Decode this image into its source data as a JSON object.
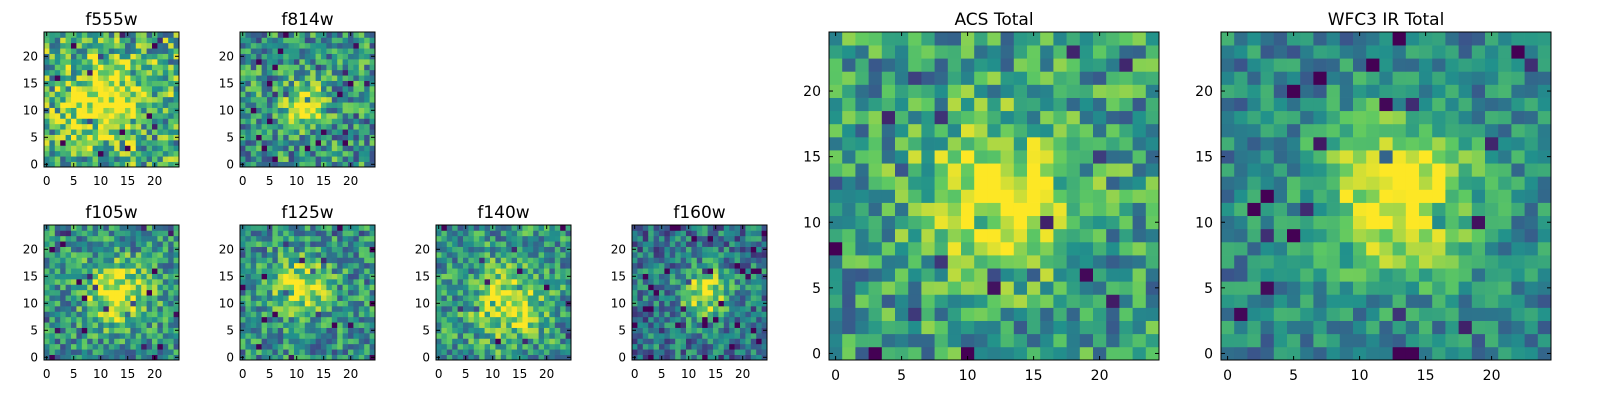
{
  "colors": {
    "colormap": "viridis",
    "colormap_stops": [
      "#440154",
      "#3b528b",
      "#21918c",
      "#5ec962",
      "#fde725"
    ],
    "frame": "#000000",
    "background": "#ffffff"
  },
  "chart_data": [
    {
      "type": "heatmap",
      "title": "f555w",
      "grid_size": 25,
      "xlim": [
        -0.5,
        24.5
      ],
      "ylim": [
        -0.5,
        24.5
      ],
      "xticks": [
        "0",
        "5",
        "10",
        "15",
        "20"
      ],
      "yticks": [
        "0",
        "5",
        "10",
        "15",
        "20"
      ],
      "source_center": [
        11,
        12
      ],
      "source_peak": 0.45,
      "source_sigma": 4.5,
      "noise": 0.35,
      "background": 0.62,
      "seed": 11
    },
    {
      "type": "heatmap",
      "title": "f814w",
      "grid_size": 25,
      "xlim": [
        -0.5,
        24.5
      ],
      "ylim": [
        -0.5,
        24.5
      ],
      "xticks": [
        "0",
        "5",
        "10",
        "15",
        "20"
      ],
      "yticks": [
        "0",
        "5",
        "10",
        "15",
        "20"
      ],
      "source_center": [
        11,
        11
      ],
      "source_peak": 0.5,
      "source_sigma": 2.8,
      "noise": 0.32,
      "background": 0.52,
      "seed": 23
    },
    {
      "type": "heatmap",
      "title": "f105w",
      "grid_size": 25,
      "xlim": [
        -0.5,
        24.5
      ],
      "ylim": [
        -0.5,
        24.5
      ],
      "xticks": [
        "0",
        "5",
        "10",
        "15",
        "20"
      ],
      "yticks": [
        "0",
        "5",
        "10",
        "15",
        "20"
      ],
      "source_center": [
        13,
        12
      ],
      "source_peak": 0.5,
      "source_sigma": 4.2,
      "noise": 0.28,
      "background": 0.5,
      "seed": 37
    },
    {
      "type": "heatmap",
      "title": "f125w",
      "grid_size": 25,
      "xlim": [
        -0.5,
        24.5
      ],
      "ylim": [
        -0.5,
        24.5
      ],
      "xticks": [
        "0",
        "5",
        "10",
        "15",
        "20"
      ],
      "yticks": [
        "0",
        "5",
        "10",
        "15",
        "20"
      ],
      "source_center": [
        11,
        13
      ],
      "source_peak": 0.45,
      "source_sigma": 3.6,
      "noise": 0.28,
      "background": 0.5,
      "seed": 41
    },
    {
      "type": "heatmap",
      "title": "f140w",
      "grid_size": 25,
      "xlim": [
        -0.5,
        24.5
      ],
      "ylim": [
        -0.5,
        24.5
      ],
      "xticks": [
        "0",
        "5",
        "10",
        "15",
        "20"
      ],
      "yticks": [
        "0",
        "5",
        "10",
        "15",
        "20"
      ],
      "source_center": [
        13,
        10
      ],
      "source_peak": 0.45,
      "source_sigma": 4.5,
      "noise": 0.28,
      "background": 0.52,
      "seed": 53
    },
    {
      "type": "heatmap",
      "title": "f160w",
      "grid_size": 25,
      "xlim": [
        -0.5,
        24.5
      ],
      "ylim": [
        -0.5,
        24.5
      ],
      "xticks": [
        "0",
        "5",
        "10",
        "15",
        "20"
      ],
      "yticks": [
        "0",
        "5",
        "10",
        "15",
        "20"
      ],
      "source_center": [
        13,
        12
      ],
      "source_peak": 0.55,
      "source_sigma": 3.2,
      "noise": 0.26,
      "background": 0.4,
      "seed": 67
    },
    {
      "type": "heatmap",
      "title": "ACS Total",
      "grid_size": 25,
      "xlim": [
        -0.5,
        24.5
      ],
      "ylim": [
        -0.5,
        24.5
      ],
      "xticks": [
        "0",
        "5",
        "10",
        "15",
        "20"
      ],
      "yticks": [
        "0",
        "5",
        "10",
        "15",
        "20"
      ],
      "source_center": [
        12,
        12
      ],
      "source_peak": 0.5,
      "source_sigma": 3.8,
      "noise": 0.28,
      "background": 0.55,
      "seed": 79
    },
    {
      "type": "heatmap",
      "title": "WFC3 IR Total",
      "grid_size": 25,
      "xlim": [
        -0.5,
        24.5
      ],
      "ylim": [
        -0.5,
        24.5
      ],
      "xticks": [
        "0",
        "5",
        "10",
        "15",
        "20"
      ],
      "yticks": [
        "0",
        "5",
        "10",
        "15",
        "20"
      ],
      "source_center": [
        13,
        12
      ],
      "source_peak": 0.6,
      "source_sigma": 4.2,
      "noise": 0.2,
      "background": 0.45,
      "seed": 97
    }
  ]
}
